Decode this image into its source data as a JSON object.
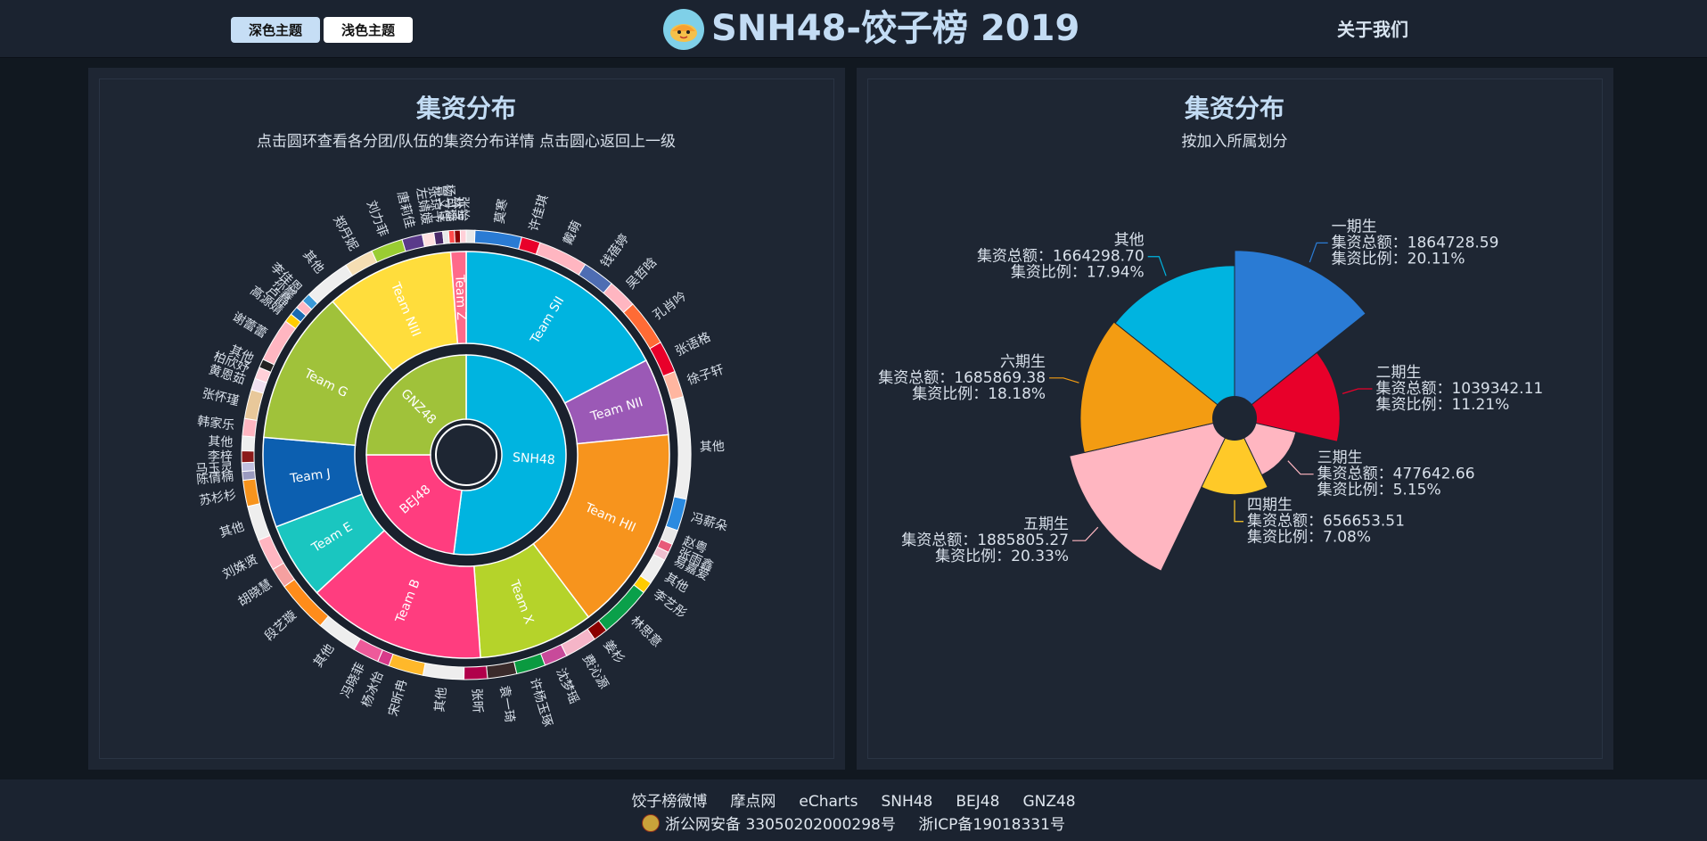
{
  "header": {
    "dark_theme_label": "深色主题",
    "light_theme_label": "浅色主题",
    "site_title": "SNH48-饺子榜 2019",
    "about_label": "关于我们"
  },
  "footer": {
    "links": [
      "饺子榜微博",
      "摩点网",
      "eCharts",
      "SNH48",
      "BEJ48",
      "GNZ48"
    ],
    "police_record": "浙公网安备 33050202000298号",
    "icp_record": "浙ICP备19018331号"
  },
  "colors": {
    "accent": "#c6def5",
    "title": "#c3dcf4",
    "panel_bg": "#1e2633",
    "page_bg": "#111820"
  },
  "chart_data": [
    {
      "type": "sunburst",
      "title": "集资分布",
      "subtitle": "点击圆环查看各分团/队伍的集资分布详情 点击圆心返回上一级",
      "groups": [
        {
          "name": "SNH48",
          "value": 52,
          "color": "#00b4e0"
        },
        {
          "name": "BEJ48",
          "value": 23,
          "color": "#ff3d7f"
        },
        {
          "name": "GNZ48",
          "value": 25,
          "color": "#a0c23a"
        }
      ],
      "teams": [
        {
          "name": "Team SII",
          "value": 17,
          "color": "#00b4e0"
        },
        {
          "name": "Team NII",
          "value": 6,
          "color": "#9b59b6"
        },
        {
          "name": "Team HII",
          "value": 16,
          "color": "#f7941d"
        },
        {
          "name": "Team X",
          "value": 9,
          "color": "#b5d32a"
        },
        {
          "name": "Team B",
          "value": 14,
          "color": "#ff3d7f"
        },
        {
          "name": "Team E",
          "value": 6,
          "color": "#1ac6c0"
        },
        {
          "name": "Team J",
          "value": 7,
          "color": "#0c5fb0"
        },
        {
          "name": "Team G",
          "value": 12,
          "color": "#a0c23a"
        },
        {
          "name": "Team NIII",
          "value": 10,
          "color": "#ffdd3c"
        },
        {
          "name": "Team Z",
          "value": 1.2,
          "color": "#ff6a8a"
        }
      ],
      "members": [
        {
          "name": "",
          "value": 0.6,
          "color": "#e8e8e8"
        },
        {
          "name": "莫寒",
          "value": 3.2,
          "color": "#2a7bd4"
        },
        {
          "name": "许佳琪",
          "value": 1.3,
          "color": "#e8002a"
        },
        {
          "name": "戴萌",
          "value": 3.4,
          "color": "#ffb6c1"
        },
        {
          "name": "钱蓓婷",
          "value": 2.2,
          "color": "#4e6db3"
        },
        {
          "name": "吴哲晗",
          "value": 2.0,
          "color": "#ffb6c1"
        },
        {
          "name": "孔肖吟",
          "value": 3.2,
          "color": "#ff6b35"
        },
        {
          "name": "张语格",
          "value": 2.2,
          "color": "#e8002a"
        },
        {
          "name": "徐子轩",
          "value": 1.8,
          "color": "#ffb6a0"
        },
        {
          "name": "其他",
          "value": 7.0,
          "color": "#eeeeee"
        },
        {
          "name": "冯薪朵",
          "value": 2.2,
          "color": "#2a8ae0"
        },
        {
          "name": "赵粤",
          "value": 1.0,
          "color": "#e8e8e8"
        },
        {
          "name": "张雨鑫",
          "value": 0.6,
          "color": "#e85a7a"
        },
        {
          "name": "易嘉爱",
          "value": 0.6,
          "color": "#f0c0d0"
        },
        {
          "name": "其他",
          "value": 1.8,
          "color": "#eeeeee"
        },
        {
          "name": "李艺彤",
          "value": 0.8,
          "color": "#ffcc00"
        },
        {
          "name": "林思意",
          "value": 3.6,
          "color": "#0aa04a"
        },
        {
          "name": "姜杉",
          "value": 1.0,
          "color": "#8b0000"
        },
        {
          "name": "费沁源",
          "value": 2.2,
          "color": "#f5b5c8"
        },
        {
          "name": "沈梦瑶",
          "value": 1.6,
          "color": "#c84a9a"
        },
        {
          "name": "许杨玉琢",
          "value": 2.0,
          "color": "#0a9a40"
        },
        {
          "name": "袁一琦",
          "value": 2.0,
          "color": "#3a2a2a"
        },
        {
          "name": "张昕",
          "value": 1.6,
          "color": "#b0004a"
        },
        {
          "name": "其他",
          "value": 2.8,
          "color": "#eeeeee"
        },
        {
          "name": "宋昕冉",
          "value": 2.4,
          "color": "#ffb82a"
        },
        {
          "name": "杨冰怡",
          "value": 0.8,
          "color": "#d83a8a"
        },
        {
          "name": "冯晓菲",
          "value": 1.8,
          "color": "#ee5a9a"
        },
        {
          "name": "其他",
          "value": 2.8,
          "color": "#eeeeee"
        },
        {
          "name": "段艺璇",
          "value": 3.6,
          "color": "#ff8c1a"
        },
        {
          "name": "胡晓慧",
          "value": 1.4,
          "color": "#f5a0a0"
        },
        {
          "name": "刘姝贤",
          "value": 2.2,
          "color": "#ffb6c1"
        },
        {
          "name": "其他",
          "value": 2.4,
          "color": "#eeeeee"
        },
        {
          "name": "苏杉杉",
          "value": 1.8,
          "color": "#f7941d"
        },
        {
          "name": "陈倩楠",
          "value": 0.6,
          "color": "#9a9abf"
        },
        {
          "name": "马玉灵",
          "value": 0.6,
          "color": "#c0c0e0"
        },
        {
          "name": "李梓",
          "value": 0.8,
          "color": "#8b1a1a"
        },
        {
          "name": "其他",
          "value": 1.0,
          "color": "#eeeeee"
        },
        {
          "name": "韩家乐",
          "value": 1.2,
          "color": "#ffb6c1"
        },
        {
          "name": "张怀瑾",
          "value": 2.0,
          "color": "#e8c89a"
        },
        {
          "name": "黄恩茹",
          "value": 0.8,
          "color": "#f0e0f0"
        },
        {
          "name": "柏欣妤",
          "value": 0.8,
          "color": "#ffd0d8"
        },
        {
          "name": "其他",
          "value": 0.6,
          "color": "#222222"
        },
        {
          "name": "谢蕾蕾",
          "value": 3.0,
          "color": "#ffb6c1"
        },
        {
          "name": "高源婧",
          "value": 0.6,
          "color": "#ffcc00"
        },
        {
          "name": "卢静",
          "value": 0.6,
          "color": "#1a6ab0"
        },
        {
          "name": "孙馨",
          "value": 0.6,
          "color": "#ffb6c1"
        },
        {
          "name": "李佳恩",
          "value": 0.6,
          "color": "#3a9ad8"
        },
        {
          "name": "其他",
          "value": 3.2,
          "color": "#eeeeee"
        },
        {
          "name": "郑丹妮",
          "value": 2.0,
          "color": "#f5deb3"
        },
        {
          "name": "刘力菲",
          "value": 2.2,
          "color": "#9acd32"
        },
        {
          "name": "唐莉佳",
          "value": 1.4,
          "color": "#5a3a8a"
        },
        {
          "name": "左婧媛",
          "value": 0.8,
          "color": "#ffe0e0"
        },
        {
          "name": "张琼予",
          "value": 0.6,
          "color": "#4a2a6a"
        },
        {
          "name": "曾艾佳",
          "value": 0.4,
          "color": "#e8e8e8"
        },
        {
          "name": "杨可璐",
          "value": 0.4,
          "color": "#ff4a4a"
        },
        {
          "name": "林芝",
          "value": 0.4,
          "color": "#8b0000"
        },
        {
          "name": "张怡",
          "value": 0.4,
          "color": "#ffd0d8"
        }
      ]
    },
    {
      "type": "pie",
      "rose": true,
      "title": "集资分布",
      "subtitle": "按加入所属划分",
      "slices": [
        {
          "name": "一期生",
          "total_label": "集资总额：1864728.59",
          "ratio_label": "集资比例：20.11%",
          "value": 1864728.59,
          "color": "#2a7bd4"
        },
        {
          "name": "二期生",
          "total_label": "集资总额：1039342.11",
          "ratio_label": "集资比例：11.21%",
          "value": 1039342.11,
          "color": "#e8002a"
        },
        {
          "name": "三期生",
          "total_label": "集资总额：477642.66",
          "ratio_label": "集资比例：5.15%",
          "value": 477642.66,
          "color": "#ffb6c1"
        },
        {
          "name": "四期生",
          "total_label": "集资总额：656653.51",
          "ratio_label": "集资比例：7.08%",
          "value": 656653.51,
          "color": "#ffc928"
        },
        {
          "name": "五期生",
          "total_label": "集资总额：1885805.27",
          "ratio_label": "集资比例：20.33%",
          "value": 1885805.27,
          "color": "#ffb6c1"
        },
        {
          "name": "六期生",
          "total_label": "集资总额：1685869.38",
          "ratio_label": "集资比例：18.18%",
          "value": 1685869.38,
          "color": "#f39c12"
        },
        {
          "name": "其他",
          "total_label": "集资总额：1664298.70",
          "ratio_label": "集资比例：17.94%",
          "value": 1664298.7,
          "color": "#00b4e0"
        }
      ]
    }
  ]
}
